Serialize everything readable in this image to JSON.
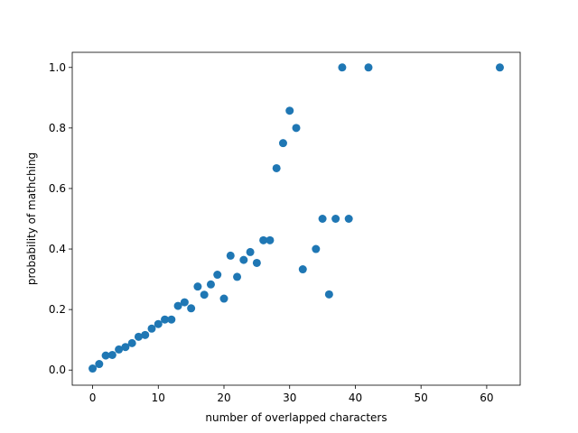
{
  "chart_data": {
    "type": "scatter",
    "title": "",
    "xlabel": "number of overlapped characters",
    "ylabel": "probability of mathching",
    "xlim": [
      -3.1,
      65.1
    ],
    "ylim": [
      -0.05,
      1.05
    ],
    "xticks": [
      0,
      10,
      20,
      30,
      40,
      50,
      60
    ],
    "yticks": [
      0.0,
      0.2,
      0.4,
      0.6,
      0.8,
      1.0
    ],
    "xtick_labels": [
      "0",
      "10",
      "20",
      "30",
      "40",
      "50",
      "60"
    ],
    "ytick_labels": [
      "0.0",
      "0.2",
      "0.4",
      "0.6",
      "0.8",
      "1.0"
    ],
    "grid": false,
    "marker_color": "#1f77b4",
    "points": [
      [
        0,
        0.005
      ],
      [
        1,
        0.02
      ],
      [
        2,
        0.048
      ],
      [
        3,
        0.05
      ],
      [
        4,
        0.068
      ],
      [
        5,
        0.076
      ],
      [
        6,
        0.089
      ],
      [
        7,
        0.11
      ],
      [
        8,
        0.116
      ],
      [
        9,
        0.137
      ],
      [
        10,
        0.152
      ],
      [
        11,
        0.167
      ],
      [
        12,
        0.167
      ],
      [
        13,
        0.212
      ],
      [
        14,
        0.224
      ],
      [
        15,
        0.204
      ],
      [
        16,
        0.276
      ],
      [
        17,
        0.249
      ],
      [
        18,
        0.283
      ],
      [
        19,
        0.315
      ],
      [
        20,
        0.236
      ],
      [
        21,
        0.378
      ],
      [
        22,
        0.308
      ],
      [
        23,
        0.364
      ],
      [
        24,
        0.39
      ],
      [
        25,
        0.354
      ],
      [
        26,
        0.429
      ],
      [
        27,
        0.429
      ],
      [
        28,
        0.667
      ],
      [
        29,
        0.75
      ],
      [
        30,
        0.857
      ],
      [
        31,
        0.8
      ],
      [
        32,
        0.333
      ],
      [
        34,
        0.4
      ],
      [
        35,
        0.5
      ],
      [
        36,
        0.25
      ],
      [
        37,
        0.5
      ],
      [
        38,
        1.0
      ],
      [
        39,
        0.5
      ],
      [
        42,
        1.0
      ],
      [
        62,
        1.0
      ]
    ]
  }
}
